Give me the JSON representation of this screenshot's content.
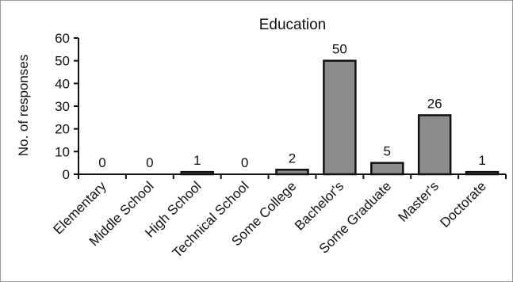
{
  "chart_data": {
    "type": "bar",
    "title": "Education",
    "xlabel": "",
    "ylabel": "No. of responses",
    "categories": [
      "Elementary",
      "Middle School",
      "High School",
      "Technical School",
      "Some College",
      "Bachelor's",
      "Some Graduate",
      "Master's",
      "Doctorate"
    ],
    "values": [
      0,
      0,
      1,
      0,
      2,
      50,
      5,
      26,
      1
    ],
    "ylim": [
      0,
      60
    ],
    "yticks": [
      "0",
      "10",
      "20",
      "30",
      "40",
      "50",
      "60"
    ],
    "grid": false,
    "bar_color": "#8c8c8c",
    "bar_edge_color": "#111111"
  }
}
